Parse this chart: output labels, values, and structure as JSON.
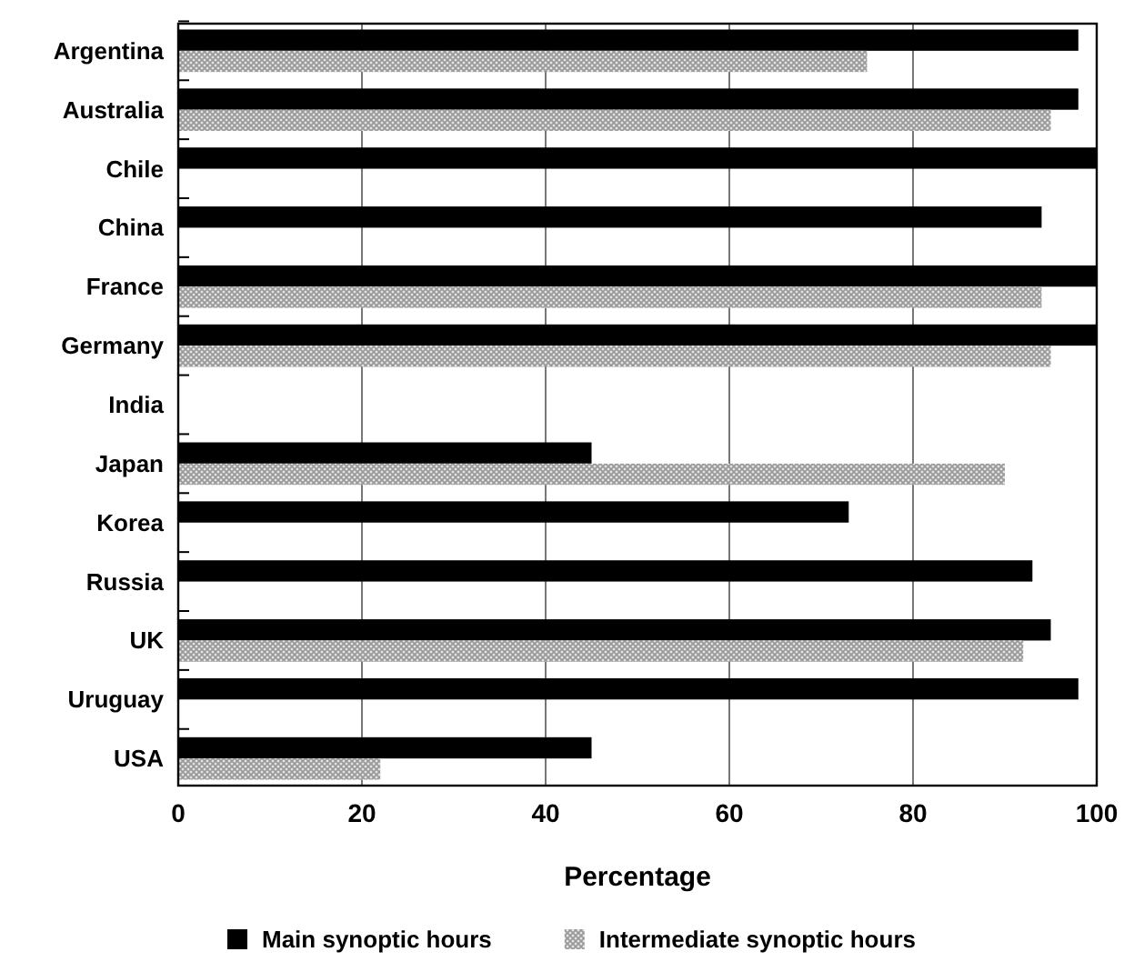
{
  "chart_data": {
    "type": "bar",
    "orientation": "horizontal",
    "xlabel": "Percentage",
    "categories": [
      "Argentina",
      "Australia",
      "Chile",
      "China",
      "France",
      "Germany",
      "India",
      "Japan",
      "Korea",
      "Russia",
      "UK",
      "Uruguay",
      "USA"
    ],
    "series": [
      {
        "name": "Main synoptic hours",
        "color": "#000000",
        "values": [
          98,
          98,
          100,
          94,
          100,
          100,
          null,
          45,
          73,
          93,
          95,
          98,
          45
        ]
      },
      {
        "name": "Intermediate synoptic hours",
        "color": "#999999",
        "values": [
          75,
          95,
          null,
          null,
          94,
          95,
          null,
          90,
          null,
          null,
          92,
          null,
          22
        ]
      }
    ],
    "xlim": [
      0,
      100
    ],
    "xticks": [
      0,
      20,
      40,
      60,
      80,
      100
    ],
    "grid": "x",
    "legend": "bottom"
  }
}
